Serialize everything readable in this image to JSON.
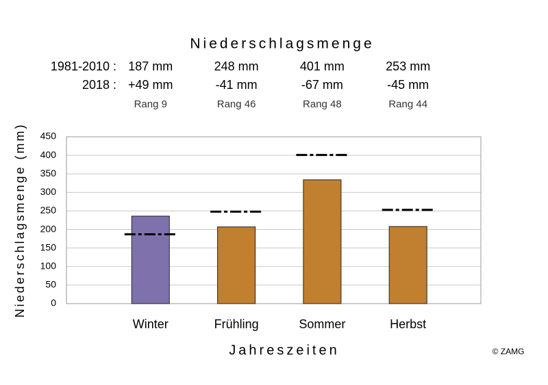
{
  "chart_data": {
    "type": "bar",
    "title": "Niederschlagsmenge",
    "x_label": "Jahreszeiten",
    "y_label": "Niederschlagsmenge (mm)",
    "credit": "© ZAMG",
    "categories": [
      "Winter",
      "Frühling",
      "Sommer",
      "Herbst"
    ],
    "header_rows": [
      {
        "label": "1981-2010 :",
        "cells": [
          "187 mm",
          "248 mm",
          "401 mm",
          "253 mm"
        ]
      },
      {
        "label": "2018 :",
        "cells": [
          "+49 mm",
          "-41 mm",
          "-67 mm",
          "-45 mm"
        ]
      }
    ],
    "ranks": [
      "Rang 9",
      "Rang 46",
      "Rang 48",
      "Rang 44"
    ],
    "series": [
      {
        "type": "bar",
        "colors": [
          "#7f72ac",
          "#c17f30",
          "#c17f30",
          "#c17f30"
        ],
        "values": [
          236,
          207,
          334,
          208
        ]
      },
      {
        "type": "dashdot",
        "color": "#000000",
        "values": [
          187,
          248,
          401,
          253
        ]
      }
    ],
    "ylim": [
      0,
      450
    ],
    "yticks": [
      0,
      50,
      100,
      150,
      200,
      250,
      300,
      350,
      400,
      450
    ],
    "grid": true
  }
}
